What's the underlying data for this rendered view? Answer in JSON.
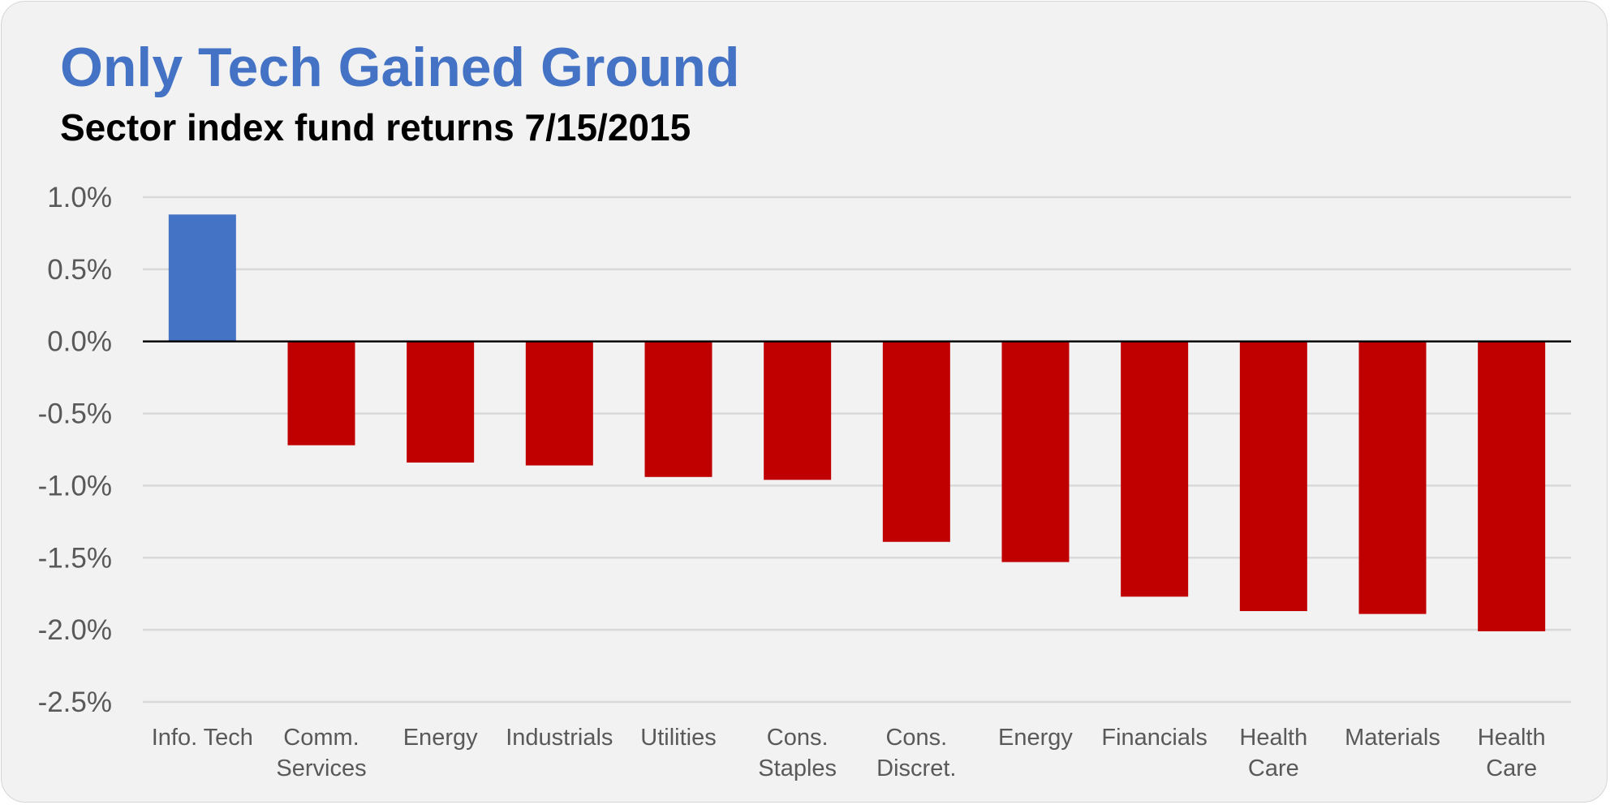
{
  "chart_data": {
    "type": "bar",
    "title": "Only Tech Gained Ground",
    "subtitle": "Sector index fund returns 7/15/2015",
    "xlabel": "",
    "ylabel": "",
    "categories": [
      [
        "Info. Tech"
      ],
      [
        "Comm.",
        "Services"
      ],
      [
        "Energy"
      ],
      [
        "Industrials"
      ],
      [
        "Utilities"
      ],
      [
        "Cons.",
        "Staples"
      ],
      [
        "Cons.",
        "Discret."
      ],
      [
        "Energy"
      ],
      [
        "Financials"
      ],
      [
        "Health",
        "Care"
      ],
      [
        "Materials"
      ],
      [
        "Health",
        "Care"
      ]
    ],
    "values": [
      0.88,
      -0.72,
      -0.84,
      -0.86,
      -0.94,
      -0.96,
      -1.39,
      -1.53,
      -1.77,
      -1.87,
      -1.89,
      -2.01
    ],
    "value_unit": "%",
    "ylim": [
      -2.5,
      1.0
    ],
    "yticks": [
      1.0,
      0.5,
      0.0,
      -0.5,
      -1.0,
      -1.5,
      -2.0,
      -2.5
    ],
    "ytick_labels": [
      "1.0%",
      "0.5%",
      "0.0%",
      "-0.5%",
      "-1.0%",
      "-1.5%",
      "-2.0%",
      "-2.5%"
    ],
    "grid": true,
    "legend": "none",
    "colors": {
      "positive": "#4472c4",
      "negative": "#c00000",
      "gridline": "#d9d9d9",
      "zero_line": "#000000",
      "title": "#4472c4",
      "background": "#f2f2f2"
    }
  }
}
